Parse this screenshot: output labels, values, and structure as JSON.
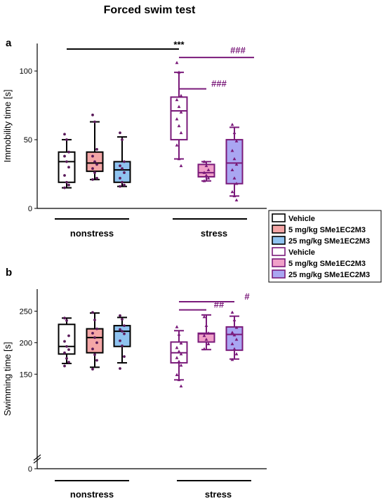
{
  "figure": {
    "title": "Forced swim test",
    "colors": {
      "nonstress": "#000000",
      "stress": "#7a1a7a",
      "vehicle_fill": "#ffffff",
      "fill_5mg_nonstress": "#f4a6a6",
      "fill_25mg_nonstress": "#8fc3f0",
      "fill_5mg_stress": "#f0a0c8",
      "fill_25mg_stress": "#a9a6f2"
    }
  },
  "legend": {
    "placement": "right",
    "entries": [
      {
        "label": "Vehicle",
        "group": "nonstress",
        "fill": "#ffffff"
      },
      {
        "label": "5 mg/kg SMe1EC2M3",
        "group": "nonstress",
        "fill": "#f4a6a6"
      },
      {
        "label": "25 mg/kg SMe1EC2M3",
        "group": "nonstress",
        "fill": "#8fc3f0"
      },
      {
        "label": "Vehicle",
        "group": "stress",
        "fill": "#ffffff"
      },
      {
        "label": "5 mg/kg SMe1EC2M3",
        "group": "stress",
        "fill": "#f0a0c8"
      },
      {
        "label": "25 mg/kg SMe1EC2M3",
        "group": "stress",
        "fill": "#a9a6f2"
      }
    ]
  },
  "chart_data": [
    {
      "type": "box",
      "panel": "a",
      "ylabel": "Immobility time [s]",
      "ylim": [
        0,
        120
      ],
      "yticks": [
        0,
        50,
        100
      ],
      "groups": [
        "nonstress",
        "stress"
      ],
      "series": [
        {
          "group": "nonstress",
          "treatment": "Vehicle",
          "min": 15,
          "q1": 19,
          "median": 34,
          "q3": 41,
          "max": 50,
          "points": [
            54,
            50,
            41,
            38,
            34,
            30,
            24,
            19,
            17,
            15
          ]
        },
        {
          "group": "nonstress",
          "treatment": "5 mg/kg SMe1EC2M3",
          "min": 21,
          "q1": 27,
          "median": 33,
          "q3": 41,
          "max": 63,
          "points": [
            68,
            63,
            43,
            38,
            34,
            32,
            29,
            26,
            22,
            21
          ]
        },
        {
          "group": "nonstress",
          "treatment": "25 mg/kg SMe1EC2M3",
          "min": 16,
          "q1": 19,
          "median": 28,
          "q3": 34,
          "max": 52,
          "points": [
            55,
            50,
            34,
            31,
            29,
            26,
            22,
            19,
            17,
            16
          ]
        },
        {
          "group": "stress",
          "treatment": "Vehicle",
          "min": 36,
          "q1": 50,
          "median": 71,
          "q3": 81,
          "max": 99,
          "points": [
            106,
            99,
            82,
            79,
            74,
            70,
            65,
            60,
            55,
            46,
            36,
            31
          ]
        },
        {
          "group": "stress",
          "treatment": "5 mg/kg SMe1EC2M3",
          "min": 20,
          "q1": 23,
          "median": 26,
          "q3": 32,
          "max": 34,
          "points": [
            34,
            31,
            28,
            26,
            24,
            22,
            20
          ]
        },
        {
          "group": "stress",
          "treatment": "25 mg/kg SMe1EC2M3",
          "min": 9,
          "q1": 18,
          "median": 33,
          "q3": 50,
          "max": 59,
          "points": [
            61,
            55,
            49,
            42,
            36,
            32,
            28,
            22,
            18,
            12,
            9,
            6
          ]
        }
      ],
      "annotations": [
        {
          "label": "***",
          "from": 0,
          "to": 3,
          "y": 116,
          "color": "nonstress"
        },
        {
          "label": "###",
          "from": 3,
          "to": 5,
          "y": 116,
          "color": "stress"
        },
        {
          "label": "###",
          "from": 3,
          "to": 4,
          "y": 87,
          "color": "stress"
        }
      ]
    },
    {
      "type": "box",
      "panel": "b",
      "ylabel": "Swimming time [s]",
      "ylim": [
        0,
        285
      ],
      "axis_break": true,
      "yticks": [
        0,
        150,
        200,
        250
      ],
      "groups": [
        "nonstress",
        "stress"
      ],
      "series": [
        {
          "group": "nonstress",
          "treatment": "Vehicle",
          "min": 167,
          "q1": 182,
          "median": 194,
          "q3": 229,
          "max": 239,
          "points": [
            239,
            235,
            211,
            202,
            194,
            189,
            184,
            175,
            169,
            163
          ]
        },
        {
          "group": "nonstress",
          "treatment": "5 mg/kg SMe1EC2M3",
          "min": 161,
          "q1": 184,
          "median": 208,
          "q3": 222,
          "max": 247,
          "points": [
            248,
            236,
            222,
            215,
            208,
            200,
            190,
            181,
            172,
            158
          ]
        },
        {
          "group": "nonstress",
          "treatment": "25 mg/kg SMe1EC2M3",
          "min": 168,
          "q1": 194,
          "median": 218,
          "q3": 227,
          "max": 240,
          "points": [
            243,
            237,
            227,
            221,
            218,
            214,
            203,
            195,
            178,
            159
          ]
        },
        {
          "group": "stress",
          "treatment": "Vehicle",
          "min": 141,
          "q1": 168,
          "median": 184,
          "q3": 201,
          "max": 219,
          "points": [
            225,
            213,
            199,
            192,
            186,
            182,
            176,
            170,
            164,
            149,
            141,
            131
          ]
        },
        {
          "group": "stress",
          "treatment": "5 mg/kg SMe1EC2M3",
          "min": 189,
          "q1": 201,
          "median": 214,
          "q3": 215,
          "max": 244,
          "points": [
            241,
            227,
            215,
            211,
            205,
            198,
            190
          ]
        },
        {
          "group": "stress",
          "treatment": "25 mg/kg SMe1EC2M3",
          "min": 174,
          "q1": 188,
          "median": 213,
          "q3": 225,
          "max": 242,
          "points": [
            248,
            236,
            224,
            216,
            212,
            205,
            198,
            190,
            182,
            173
          ]
        }
      ],
      "annotations": [
        {
          "label": "#",
          "from": 3,
          "to": 5,
          "y": 265,
          "color": "stress"
        },
        {
          "label": "##",
          "from": 3,
          "to": 4,
          "y": 252,
          "color": "stress"
        }
      ]
    }
  ]
}
